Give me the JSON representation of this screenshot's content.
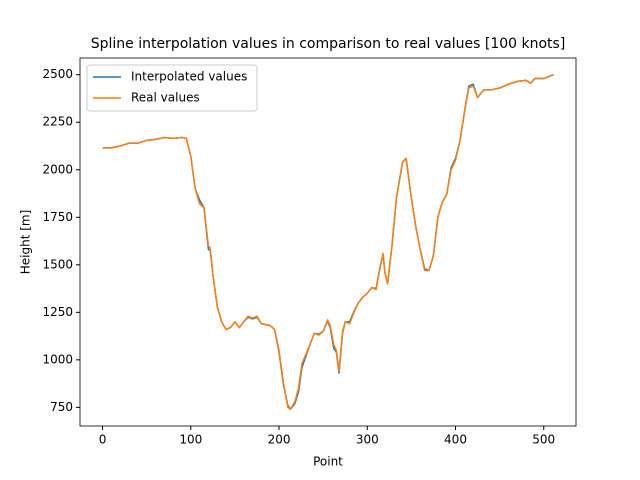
{
  "chart_data": {
    "type": "line",
    "title": "Spline interpolation values in comparison to real values [100 knots]",
    "x_label": "Point",
    "y_label": "Height [m]",
    "x": [
      0,
      10,
      20,
      30,
      40,
      50,
      60,
      70,
      80,
      90,
      95,
      100,
      105,
      110,
      115,
      120,
      122,
      125,
      130,
      135,
      140,
      145,
      150,
      155,
      160,
      165,
      170,
      175,
      180,
      190,
      195,
      200,
      205,
      210,
      213,
      218,
      222,
      226,
      235,
      240,
      245,
      250,
      255,
      258,
      262,
      265,
      268,
      272,
      275,
      280,
      285,
      290,
      295,
      300,
      305,
      310,
      315,
      318,
      320,
      323,
      328,
      333,
      340,
      344,
      350,
      355,
      360,
      365,
      370,
      375,
      380,
      385,
      390,
      395,
      400,
      405,
      410,
      415,
      420,
      425,
      432,
      440,
      450,
      460,
      470,
      480,
      485,
      490,
      500,
      511
    ],
    "series": [
      {
        "name": "Interpolated values",
        "color": "#1f77b4",
        "values": [
          2115,
          2115,
          2125,
          2140,
          2140,
          2155,
          2160,
          2170,
          2165,
          2170,
          2165,
          2070,
          1900,
          1840,
          1800,
          1580,
          1580,
          1450,
          1280,
          1200,
          1160,
          1170,
          1200,
          1170,
          1200,
          1225,
          1215,
          1225,
          1190,
          1180,
          1160,
          1040,
          870,
          760,
          740,
          770,
          830,
          960,
          1080,
          1140,
          1135,
          1150,
          1205,
          1170,
          1060,
          1040,
          930,
          1140,
          1200,
          1200,
          1255,
          1300,
          1330,
          1350,
          1380,
          1375,
          1500,
          1550,
          1460,
          1400,
          1600,
          1850,
          2040,
          2060,
          1850,
          1700,
          1580,
          1480,
          1470,
          1550,
          1750,
          1830,
          1870,
          2010,
          2060,
          2150,
          2300,
          2440,
          2450,
          2380,
          2420,
          2420,
          2430,
          2450,
          2465,
          2470,
          2455,
          2480,
          2480,
          2500
        ]
      },
      {
        "name": "Real values",
        "color": "#ff7f0e",
        "values": [
          2115,
          2115,
          2125,
          2140,
          2140,
          2155,
          2160,
          2170,
          2165,
          2170,
          2165,
          2070,
          1900,
          1820,
          1800,
          1600,
          1590,
          1450,
          1280,
          1200,
          1160,
          1170,
          1200,
          1170,
          1200,
          1230,
          1220,
          1230,
          1190,
          1180,
          1160,
          1050,
          880,
          750,
          740,
          780,
          850,
          980,
          1080,
          1140,
          1130,
          1150,
          1210,
          1180,
          1080,
          1050,
          940,
          1150,
          1200,
          1190,
          1250,
          1300,
          1330,
          1350,
          1380,
          1370,
          1500,
          1560,
          1460,
          1400,
          1600,
          1850,
          2040,
          2060,
          1850,
          1700,
          1580,
          1470,
          1470,
          1550,
          1750,
          1830,
          1870,
          2000,
          2050,
          2150,
          2300,
          2430,
          2440,
          2380,
          2420,
          2420,
          2430,
          2450,
          2465,
          2470,
          2455,
          2480,
          2480,
          2500
        ]
      }
    ],
    "xlim": [
      -25.55,
      536.55
    ],
    "ylim": [
      652,
      2588
    ],
    "xticks": [
      0,
      100,
      200,
      300,
      400,
      500
    ],
    "yticks": [
      750,
      1000,
      1250,
      1500,
      1750,
      2000,
      2250,
      2500
    ],
    "legend": "upper left"
  }
}
